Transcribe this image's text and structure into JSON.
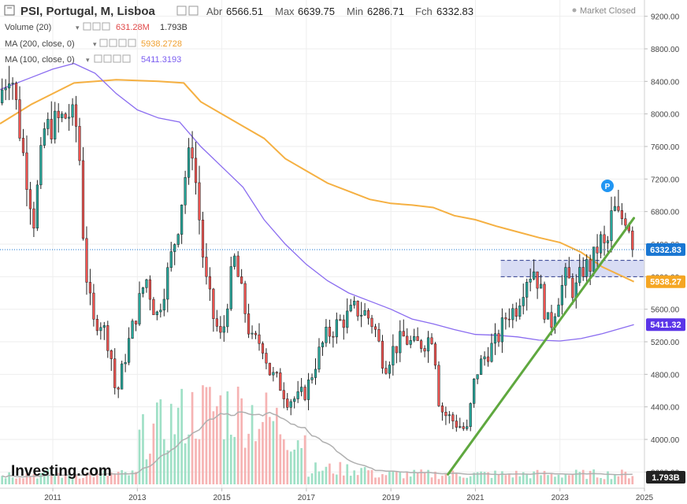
{
  "header": {
    "instrument": "PSI, Portugal, M, Lisboa",
    "open_label": "Abr",
    "open_value": "6566.51",
    "high_label": "Max",
    "high_value": "6639.75",
    "low_label": "Min",
    "low_value": "6286.71",
    "close_label": "Fch",
    "close_value": "6332.83",
    "market_status": "Market Closed"
  },
  "indicators": [
    {
      "label": "Volume (20)",
      "value1": "631.28M",
      "value2": "1.793B",
      "color": "#e04848"
    },
    {
      "label": "MA (200, close, 0)",
      "value1": "5938.2728",
      "color": "#f0a030"
    },
    {
      "label": "MA (100, close, 0)",
      "value1": "5411.3193",
      "color": "#7a5cf0"
    }
  ],
  "badges": {
    "last_price": "6332.83",
    "ma200": "5938.27",
    "ma100": "5411.32",
    "volume": "1.793B"
  },
  "marker_label": "P",
  "logo": "Investing.com",
  "colors": {
    "up": "#26a69a",
    "down": "#ef5350",
    "ma200": "#f5b042",
    "ma100": "#8a6cf0",
    "trendline": "#5fa83f",
    "volume_up": "#9fe0c6",
    "volume_down": "#f6b3b3",
    "volume_ma": "#b0b0b0",
    "zone": "#c8cdf0",
    "badge_price": "#1976d2",
    "badge_ma200": "#f5a623",
    "badge_ma100": "#5b35e8"
  },
  "chart_data": {
    "type": "candlestick",
    "y_ticks": [
      3600,
      4000,
      4400,
      4800,
      5200,
      5600,
      6000,
      6400,
      6800,
      7200,
      7600,
      8000,
      8400,
      8800,
      9200
    ],
    "x_ticks": [
      "2011",
      "2013",
      "2015",
      "2017",
      "2019",
      "2021",
      "2023",
      "2025"
    ],
    "x_range": [
      2009.75,
      2025.0
    ],
    "y_range": [
      3400,
      9400
    ],
    "last_close": 6332.83,
    "zone": {
      "from": 2021.6,
      "to": 2025.0,
      "low": 6000,
      "high": 6200
    },
    "trendline": [
      {
        "t": 2020.35,
        "v": 3570
      },
      {
        "t": 2024.75,
        "v": 6720
      }
    ],
    "price_anchors": [
      {
        "t": 2009.8,
        "v": 8300
      },
      {
        "t": 2010.0,
        "v": 8600
      },
      {
        "t": 2010.3,
        "v": 7500
      },
      {
        "t": 2010.55,
        "v": 6700
      },
      {
        "t": 2010.8,
        "v": 7800
      },
      {
        "t": 2011.1,
        "v": 7900
      },
      {
        "t": 2011.4,
        "v": 8000
      },
      {
        "t": 2011.6,
        "v": 7800
      },
      {
        "t": 2011.75,
        "v": 6200
      },
      {
        "t": 2011.95,
        "v": 5400
      },
      {
        "t": 2012.1,
        "v": 5500
      },
      {
        "t": 2012.35,
        "v": 5150
      },
      {
        "t": 2012.5,
        "v": 4500
      },
      {
        "t": 2012.7,
        "v": 5000
      },
      {
        "t": 2012.95,
        "v": 5500
      },
      {
        "t": 2013.2,
        "v": 6000
      },
      {
        "t": 2013.45,
        "v": 5500
      },
      {
        "t": 2013.7,
        "v": 6000
      },
      {
        "t": 2013.95,
        "v": 6600
      },
      {
        "t": 2014.15,
        "v": 7300
      },
      {
        "t": 2014.3,
        "v": 7600
      },
      {
        "t": 2014.45,
        "v": 6800
      },
      {
        "t": 2014.6,
        "v": 6000
      },
      {
        "t": 2014.8,
        "v": 5500
      },
      {
        "t": 2015.0,
        "v": 5200
      },
      {
        "t": 2015.15,
        "v": 5800
      },
      {
        "t": 2015.3,
        "v": 6200
      },
      {
        "t": 2015.5,
        "v": 5700
      },
      {
        "t": 2015.7,
        "v": 5200
      },
      {
        "t": 2015.95,
        "v": 5200
      },
      {
        "t": 2016.15,
        "v": 4800
      },
      {
        "t": 2016.35,
        "v": 4700
      },
      {
        "t": 2016.55,
        "v": 4500
      },
      {
        "t": 2016.8,
        "v": 4500
      },
      {
        "t": 2017.0,
        "v": 4600
      },
      {
        "t": 2017.25,
        "v": 5000
      },
      {
        "t": 2017.45,
        "v": 5250
      },
      {
        "t": 2017.7,
        "v": 5400
      },
      {
        "t": 2017.95,
        "v": 5500
      },
      {
        "t": 2018.15,
        "v": 5600
      },
      {
        "t": 2018.4,
        "v": 5550
      },
      {
        "t": 2018.6,
        "v": 5400
      },
      {
        "t": 2018.85,
        "v": 4900
      },
      {
        "t": 2019.05,
        "v": 5100
      },
      {
        "t": 2019.3,
        "v": 5250
      },
      {
        "t": 2019.55,
        "v": 5150
      },
      {
        "t": 2019.8,
        "v": 5200
      },
      {
        "t": 2020.0,
        "v": 5300
      },
      {
        "t": 2020.15,
        "v": 4400
      },
      {
        "t": 2020.3,
        "v": 4300
      },
      {
        "t": 2020.55,
        "v": 4200
      },
      {
        "t": 2020.8,
        "v": 4100
      },
      {
        "t": 2021.0,
        "v": 4800
      },
      {
        "t": 2021.25,
        "v": 5050
      },
      {
        "t": 2021.5,
        "v": 5200
      },
      {
        "t": 2021.75,
        "v": 5550
      },
      {
        "t": 2021.95,
        "v": 5600
      },
      {
        "t": 2022.2,
        "v": 6000
      },
      {
        "t": 2022.4,
        "v": 6100
      },
      {
        "t": 2022.55,
        "v": 5800
      },
      {
        "t": 2022.75,
        "v": 5350
      },
      {
        "t": 2022.95,
        "v": 5750
      },
      {
        "t": 2023.15,
        "v": 6000
      },
      {
        "t": 2023.35,
        "v": 5800
      },
      {
        "t": 2023.55,
        "v": 6100
      },
      {
        "t": 2023.75,
        "v": 6150
      },
      {
        "t": 2023.95,
        "v": 6450
      },
      {
        "t": 2024.1,
        "v": 6300
      },
      {
        "t": 2024.25,
        "v": 6850
      },
      {
        "t": 2024.4,
        "v": 6700
      },
      {
        "t": 2024.55,
        "v": 6750
      },
      {
        "t": 2024.7,
        "v": 6566.51
      },
      {
        "t": 2024.75,
        "v": 6332.83
      }
    ],
    "ma200": [
      {
        "t": 2009.75,
        "v": 7880
      },
      {
        "t": 2010.5,
        "v": 8120
      },
      {
        "t": 2011.5,
        "v": 8380
      },
      {
        "t": 2012.5,
        "v": 8420
      },
      {
        "t": 2013.5,
        "v": 8400
      },
      {
        "t": 2014.1,
        "v": 8380
      },
      {
        "t": 2014.5,
        "v": 8150
      },
      {
        "t": 2015.0,
        "v": 8000
      },
      {
        "t": 2015.5,
        "v": 7850
      },
      {
        "t": 2016.0,
        "v": 7700
      },
      {
        "t": 2016.5,
        "v": 7450
      },
      {
        "t": 2017.0,
        "v": 7300
      },
      {
        "t": 2017.5,
        "v": 7150
      },
      {
        "t": 2018.0,
        "v": 7050
      },
      {
        "t": 2018.5,
        "v": 6950
      },
      {
        "t": 2019.0,
        "v": 6900
      },
      {
        "t": 2019.5,
        "v": 6880
      },
      {
        "t": 2020.0,
        "v": 6850
      },
      {
        "t": 2020.5,
        "v": 6750
      },
      {
        "t": 2021.0,
        "v": 6700
      },
      {
        "t": 2021.5,
        "v": 6620
      },
      {
        "t": 2022.0,
        "v": 6550
      },
      {
        "t": 2022.5,
        "v": 6480
      },
      {
        "t": 2023.0,
        "v": 6420
      },
      {
        "t": 2023.5,
        "v": 6300
      },
      {
        "t": 2024.0,
        "v": 6120
      },
      {
        "t": 2024.75,
        "v": 5938.27
      }
    ],
    "ma100": [
      {
        "t": 2009.75,
        "v": 8300
      },
      {
        "t": 2010.5,
        "v": 8450
      },
      {
        "t": 2011.0,
        "v": 8550
      },
      {
        "t": 2011.5,
        "v": 8620
      },
      {
        "t": 2012.0,
        "v": 8500
      },
      {
        "t": 2012.5,
        "v": 8250
      },
      {
        "t": 2013.0,
        "v": 8050
      },
      {
        "t": 2013.5,
        "v": 7950
      },
      {
        "t": 2014.0,
        "v": 7900
      },
      {
        "t": 2014.5,
        "v": 7600
      },
      {
        "t": 2015.0,
        "v": 7350
      },
      {
        "t": 2015.5,
        "v": 7100
      },
      {
        "t": 2016.0,
        "v": 6700
      },
      {
        "t": 2016.5,
        "v": 6400
      },
      {
        "t": 2017.0,
        "v": 6150
      },
      {
        "t": 2017.5,
        "v": 5950
      },
      {
        "t": 2018.0,
        "v": 5800
      },
      {
        "t": 2018.5,
        "v": 5700
      },
      {
        "t": 2019.0,
        "v": 5600
      },
      {
        "t": 2019.5,
        "v": 5480
      },
      {
        "t": 2020.0,
        "v": 5420
      },
      {
        "t": 2020.5,
        "v": 5350
      },
      {
        "t": 2021.0,
        "v": 5290
      },
      {
        "t": 2021.5,
        "v": 5280
      },
      {
        "t": 2022.0,
        "v": 5260
      },
      {
        "t": 2022.5,
        "v": 5220
      },
      {
        "t": 2023.0,
        "v": 5210
      },
      {
        "t": 2023.5,
        "v": 5240
      },
      {
        "t": 2024.0,
        "v": 5300
      },
      {
        "t": 2024.75,
        "v": 5411.32
      }
    ]
  }
}
